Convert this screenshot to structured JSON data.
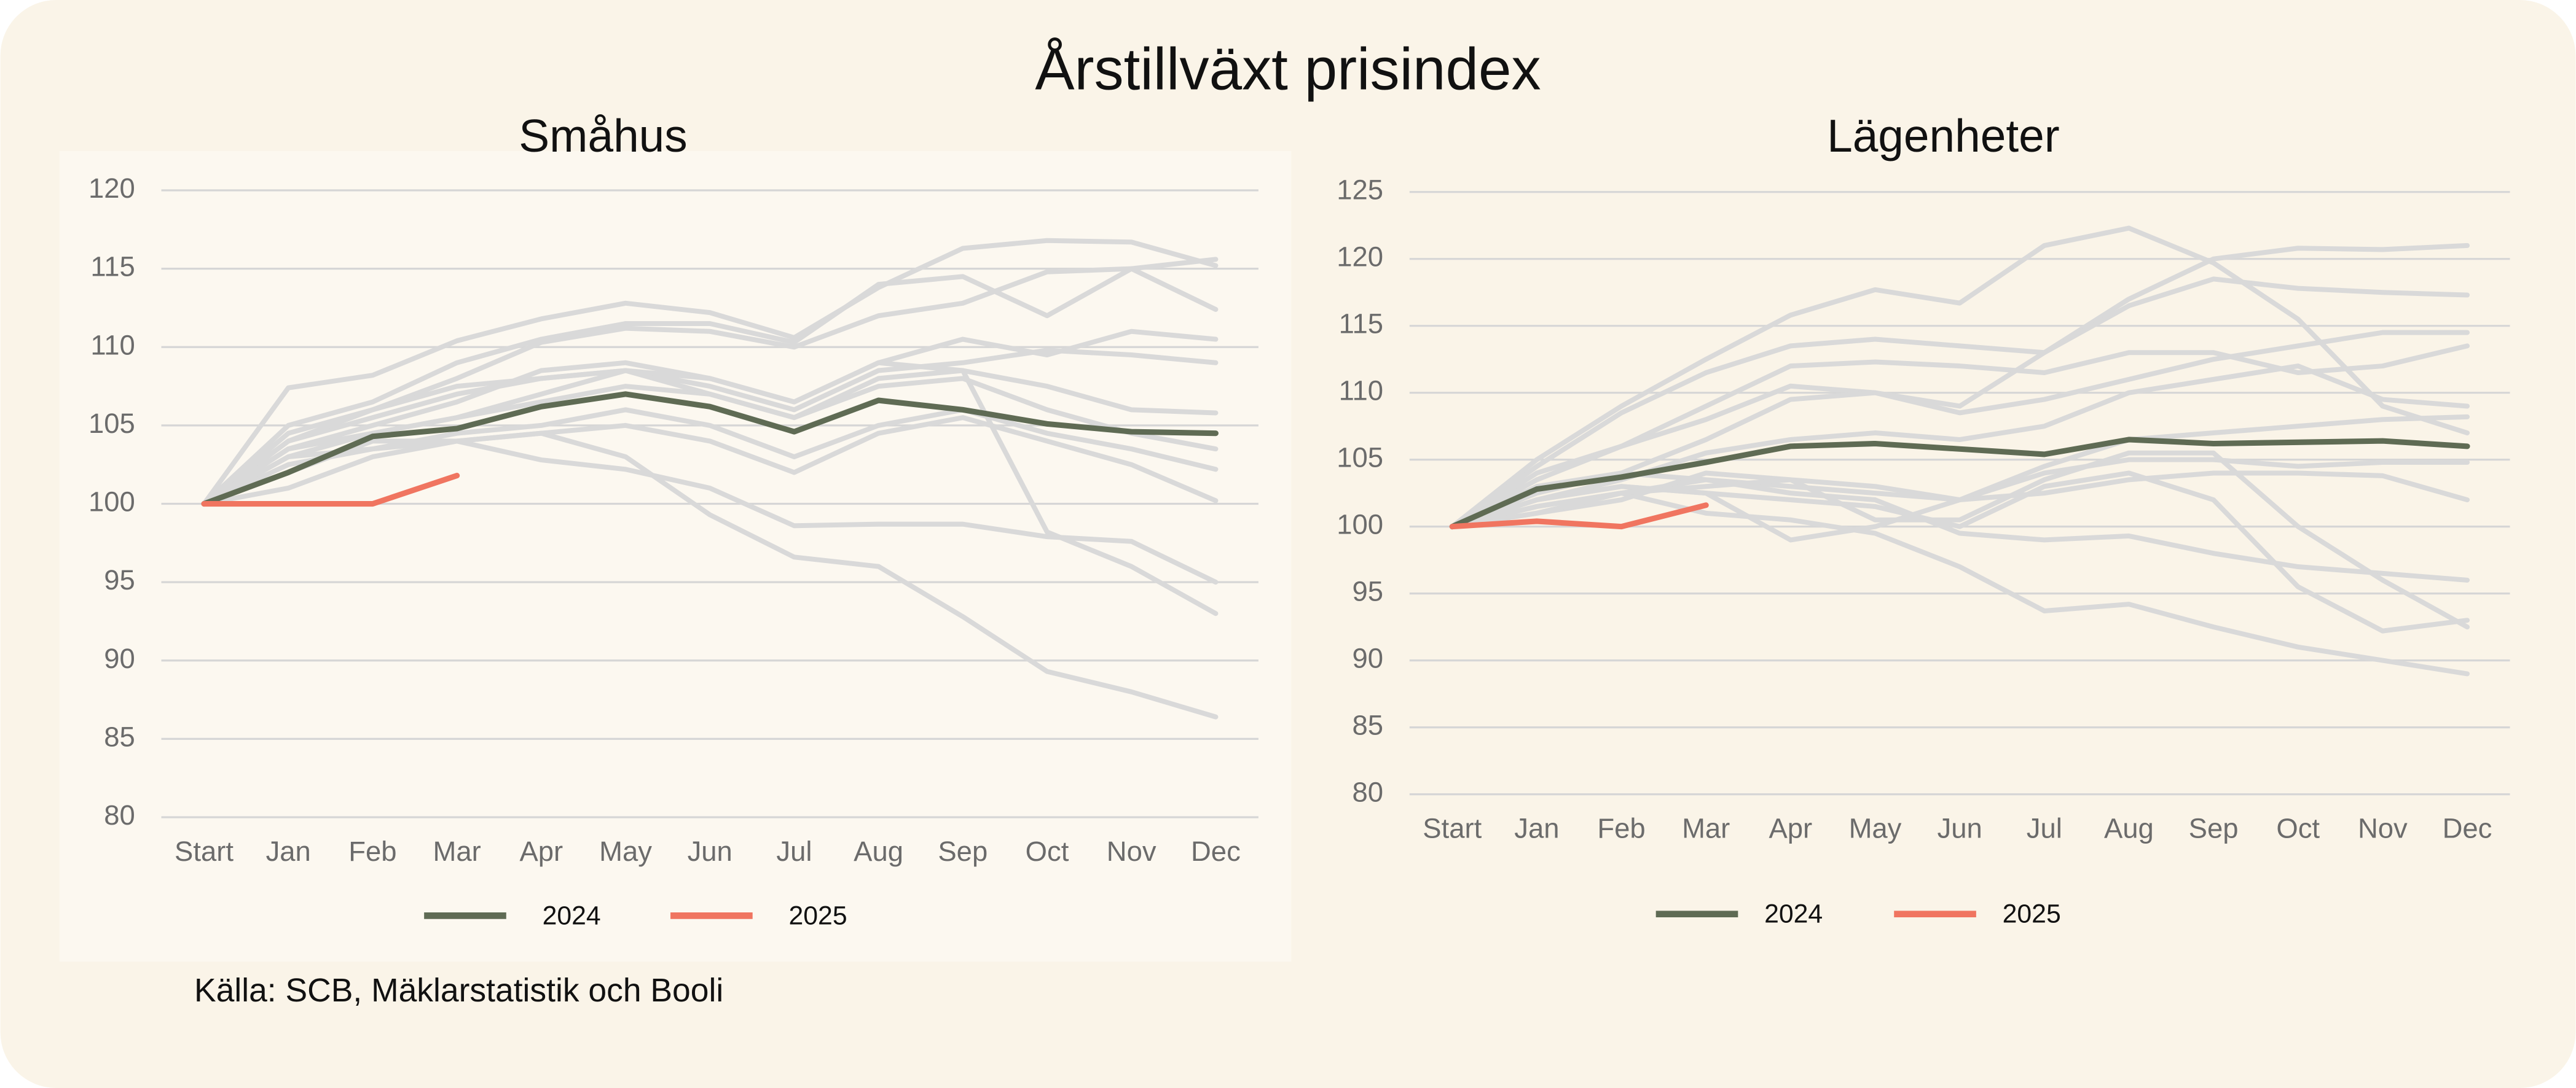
{
  "title": "Årstillväxt prisindex",
  "source": "Källa: SCB, Mäklarstatistik och Booli",
  "chart_data": [
    {
      "type": "line",
      "title": "Småhus",
      "categories": [
        "Start",
        "Jan",
        "Feb",
        "Mar",
        "Apr",
        "May",
        "Jun",
        "Jul",
        "Aug",
        "Sep",
        "Oct",
        "Nov",
        "Dec"
      ],
      "ylim": [
        80,
        120
      ],
      "yticks": [
        80,
        85,
        90,
        95,
        100,
        105,
        110,
        115,
        120
      ],
      "grid": true,
      "legend": "bottom",
      "series": [
        {
          "color": "#d9d9d9",
          "values": [
            100,
            107.4,
            108.2,
            110.4,
            111.8,
            112.8,
            112.2,
            110.6,
            113.8,
            116.3,
            116.8,
            116.7,
            115.2
          ]
        },
        {
          "color": "#d9d9d9",
          "values": [
            100,
            105,
            106.5,
            109,
            110.5,
            111.5,
            111.5,
            110.3,
            114,
            114.5,
            112,
            115,
            115.6
          ]
        },
        {
          "color": "#d9d9d9",
          "values": [
            100,
            104.5,
            106,
            108,
            110.3,
            111.2,
            111,
            110,
            112,
            112.8,
            114.8,
            115,
            112.4
          ]
        },
        {
          "color": "#d9d9d9",
          "values": [
            100,
            103.5,
            105,
            106.5,
            108.5,
            109,
            108,
            106.5,
            109,
            110.5,
            109.5,
            111,
            110.5
          ]
        },
        {
          "color": "#d9d9d9",
          "values": [
            100,
            104,
            105.5,
            107,
            108,
            108.5,
            107.5,
            106,
            108.5,
            109,
            109.8,
            109.5,
            109
          ]
        },
        {
          "color": "#d9d9d9",
          "values": [
            100,
            103,
            104.5,
            105.5,
            106.5,
            107.5,
            107,
            105.5,
            108,
            108.5,
            107.5,
            106,
            105.8
          ]
        },
        {
          "color": "#d9d9d9",
          "values": [
            100,
            102.5,
            103.5,
            104.5,
            105,
            106,
            105,
            103,
            105,
            106,
            104.5,
            103.5,
            102.2
          ]
        },
        {
          "color": "#d9d9d9",
          "values": [
            100,
            101,
            103,
            104,
            104.5,
            105,
            104,
            102,
            104.5,
            105.5,
            104,
            102.5,
            100.2
          ]
        },
        {
          "color": "#d9d9d9",
          "values": [
            100,
            102,
            104,
            104,
            102.8,
            102.2,
            101,
            98.6,
            98.7,
            98.7,
            97.9,
            97.6,
            95
          ]
        },
        {
          "color": "#d9d9d9",
          "values": [
            100,
            103,
            103.5,
            104,
            104.5,
            103,
            99.3,
            96.6,
            96,
            92.8,
            89.3,
            88,
            86.4
          ]
        },
        {
          "color": "#d9d9d9",
          "values": [
            100,
            104,
            106,
            107.5,
            108,
            108.5,
            108,
            106.5,
            109,
            108.5,
            98.2,
            96,
            93
          ]
        },
        {
          "color": "#d9d9d9",
          "values": [
            100,
            103.5,
            104.5,
            105.5,
            107,
            108.5,
            107,
            105.5,
            107.5,
            108,
            106,
            104.5,
            103.5
          ]
        },
        {
          "name": "2024",
          "color": "#5f6b54",
          "values": [
            100,
            102,
            104.3,
            104.8,
            106.2,
            107,
            106.2,
            104.6,
            106.6,
            106,
            105.1,
            104.6,
            104.5
          ]
        },
        {
          "name": "2025",
          "color": "#f07560",
          "values": [
            100,
            100,
            100,
            101.8,
            null,
            null,
            null,
            null,
            null,
            null,
            null,
            null,
            null
          ]
        }
      ]
    },
    {
      "type": "line",
      "title": "Lägenheter",
      "categories": [
        "Start",
        "Jan",
        "Feb",
        "Mar",
        "Apr",
        "May",
        "Jun",
        "Jul",
        "Aug",
        "Sep",
        "Oct",
        "Nov",
        "Dec"
      ],
      "ylim": [
        80,
        125
      ],
      "yticks": [
        80,
        85,
        90,
        95,
        100,
        105,
        110,
        115,
        120,
        125
      ],
      "grid": true,
      "legend": "bottom",
      "series": [
        {
          "color": "#d9d9d9",
          "values": [
            100,
            105,
            109,
            112.5,
            115.8,
            117.7,
            116.7,
            121,
            122.3,
            119.7,
            115.5,
            109,
            107
          ]
        },
        {
          "color": "#d9d9d9",
          "values": [
            100,
            104.5,
            108.5,
            111.5,
            113.5,
            114,
            113.5,
            113,
            117,
            120,
            120.8,
            120.7,
            121
          ]
        },
        {
          "color": "#d9d9d9",
          "values": [
            100,
            104,
            106,
            108,
            110.5,
            110,
            109,
            113,
            116.5,
            118.5,
            117.8,
            117.5,
            117.3
          ]
        },
        {
          "color": "#d9d9d9",
          "values": [
            100,
            103.5,
            106,
            109,
            112,
            112.3,
            112,
            111.5,
            113,
            113,
            111.5,
            112,
            113.5
          ]
        },
        {
          "color": "#d9d9d9",
          "values": [
            100,
            102.5,
            104,
            106.5,
            109.5,
            110,
            108.5,
            109.5,
            111,
            112.5,
            113.5,
            114.5,
            114.5
          ]
        },
        {
          "color": "#d9d9d9",
          "values": [
            100,
            102,
            103.5,
            105.5,
            106.5,
            107,
            106.5,
            107.5,
            110,
            111,
            112,
            109.5,
            109
          ]
        },
        {
          "color": "#d9d9d9",
          "values": [
            100,
            101.5,
            102.5,
            103.5,
            103,
            102.5,
            102,
            104.5,
            106.5,
            107,
            107.5,
            108,
            108.2
          ]
        },
        {
          "color": "#d9d9d9",
          "values": [
            100,
            102,
            103,
            102.5,
            99,
            100,
            102,
            104,
            105,
            105,
            104.5,
            104.8,
            104.8
          ]
        },
        {
          "color": "#d9d9d9",
          "values": [
            100,
            101,
            102,
            104,
            103.5,
            103,
            102,
            102.5,
            103.5,
            104,
            104,
            103.8,
            102
          ]
        },
        {
          "color": "#d9d9d9",
          "values": [
            100,
            103,
            104,
            103.5,
            102.5,
            102,
            99.5,
            99,
            99.3,
            98,
            97,
            96.5,
            96
          ]
        },
        {
          "color": "#d9d9d9",
          "values": [
            100,
            101.5,
            102.5,
            101,
            100.5,
            99.5,
            97,
            93.7,
            94.2,
            92.5,
            91,
            90,
            89
          ]
        },
        {
          "color": "#d9d9d9",
          "values": [
            100,
            102,
            103,
            102.5,
            102,
            101.5,
            100,
            103,
            104,
            102,
            95.5,
            92.2,
            93
          ]
        },
        {
          "color": "#d9d9d9",
          "values": [
            100,
            101,
            102.5,
            103,
            103.5,
            100.5,
            100.5,
            103.5,
            105.5,
            105.5,
            100,
            96,
            92.5
          ]
        },
        {
          "name": "2024",
          "color": "#5f6b54",
          "values": [
            100,
            102.8,
            103.7,
            104.8,
            106,
            106.2,
            105.8,
            105.4,
            106.5,
            106.2,
            106.3,
            106.4,
            106
          ]
        },
        {
          "name": "2025",
          "color": "#f07560",
          "values": [
            100,
            100.4,
            100,
            101.6,
            null,
            null,
            null,
            null,
            null,
            null,
            null,
            null,
            null
          ]
        }
      ]
    }
  ]
}
